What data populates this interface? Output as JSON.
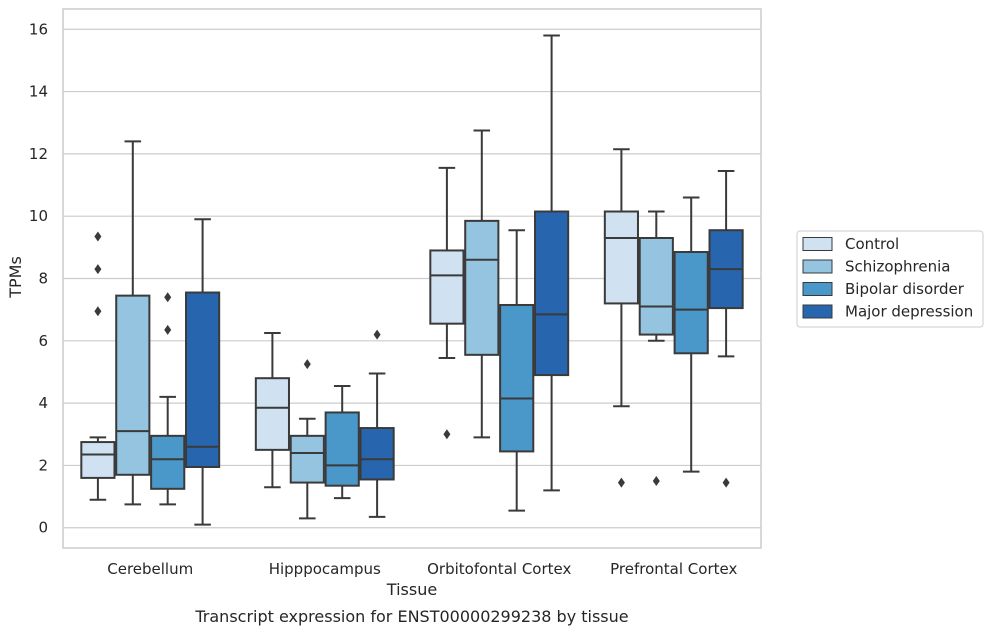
{
  "chart_data": {
    "type": "box",
    "caption": "Transcript expression for ENST00000299238 by tissue",
    "xlabel": "Tissue",
    "ylabel": "TPMs",
    "ylim": [
      -0.65,
      16.65
    ],
    "yticks": [
      0,
      2,
      4,
      6,
      8,
      10,
      12,
      14,
      16
    ],
    "grid": "horizontal",
    "legend_position": "right",
    "categories": [
      "Cerebellum",
      "Hipppocampus",
      "Orbitofontal Cortex",
      "Prefrontal Cortex"
    ],
    "series": [
      {
        "name": "Control",
        "color": "#d0e1f2",
        "boxes": [
          {
            "whisker_low": 0.9,
            "q1": 1.6,
            "median": 2.35,
            "q3": 2.75,
            "whisker_high": 2.9,
            "outliers": [
              6.95,
              8.3,
              9.35
            ]
          },
          {
            "whisker_low": 1.3,
            "q1": 2.5,
            "median": 3.85,
            "q3": 4.8,
            "whisker_high": 6.25,
            "outliers": []
          },
          {
            "whisker_low": 5.45,
            "q1": 6.55,
            "median": 8.1,
            "q3": 8.9,
            "whisker_high": 11.55,
            "outliers": [
              3.0
            ]
          },
          {
            "whisker_low": 3.9,
            "q1": 7.2,
            "median": 9.3,
            "q3": 10.15,
            "whisker_high": 12.15,
            "outliers": [
              1.45
            ]
          }
        ]
      },
      {
        "name": "Schizophrenia",
        "color": "#94c4df",
        "boxes": [
          {
            "whisker_low": 0.75,
            "q1": 1.7,
            "median": 3.1,
            "q3": 7.45,
            "whisker_high": 12.4,
            "outliers": []
          },
          {
            "whisker_low": 0.3,
            "q1": 1.45,
            "median": 2.4,
            "q3": 2.95,
            "whisker_high": 3.5,
            "outliers": [
              5.25
            ]
          },
          {
            "whisker_low": 2.9,
            "q1": 5.55,
            "median": 8.6,
            "q3": 9.85,
            "whisker_high": 12.75,
            "outliers": []
          },
          {
            "whisker_low": 6.0,
            "q1": 6.2,
            "median": 7.1,
            "q3": 9.3,
            "whisker_high": 10.15,
            "outliers": [
              1.5
            ]
          }
        ]
      },
      {
        "name": "Bipolar disorder",
        "color": "#4a98c9",
        "boxes": [
          {
            "whisker_low": 0.75,
            "q1": 1.25,
            "median": 2.2,
            "q3": 2.95,
            "whisker_high": 4.2,
            "outliers": [
              6.35,
              7.4
            ]
          },
          {
            "whisker_low": 0.95,
            "q1": 1.35,
            "median": 2.0,
            "q3": 3.7,
            "whisker_high": 4.55,
            "outliers": []
          },
          {
            "whisker_low": 0.55,
            "q1": 2.45,
            "median": 4.15,
            "q3": 7.15,
            "whisker_high": 9.55,
            "outliers": []
          },
          {
            "whisker_low": 1.8,
            "q1": 5.6,
            "median": 7.0,
            "q3": 8.85,
            "whisker_high": 10.6,
            "outliers": []
          }
        ]
      },
      {
        "name": "Major depression",
        "color": "#2766ae",
        "boxes": [
          {
            "whisker_low": 0.1,
            "q1": 1.95,
            "median": 2.6,
            "q3": 7.55,
            "whisker_high": 9.9,
            "outliers": []
          },
          {
            "whisker_low": 0.35,
            "q1": 1.55,
            "median": 2.2,
            "q3": 3.2,
            "whisker_high": 4.95,
            "outliers": [
              6.2
            ]
          },
          {
            "whisker_low": 1.2,
            "q1": 4.9,
            "median": 6.85,
            "q3": 10.15,
            "whisker_high": 15.8,
            "outliers": []
          },
          {
            "whisker_low": 5.5,
            "q1": 7.05,
            "median": 8.3,
            "q3": 9.55,
            "whisker_high": 11.45,
            "outliers": [
              1.45
            ]
          }
        ]
      }
    ]
  }
}
